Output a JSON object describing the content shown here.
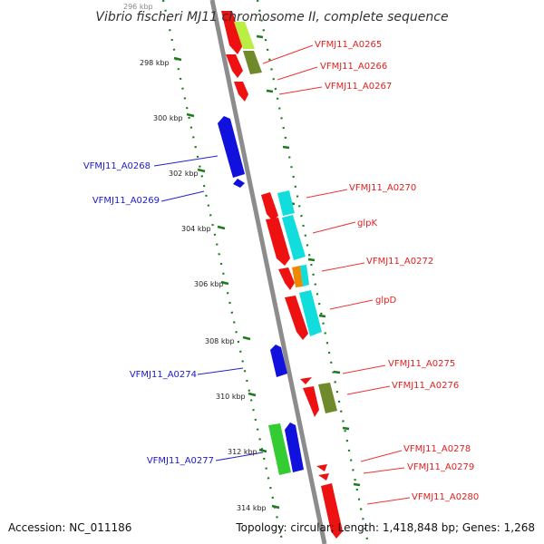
{
  "title": "Vibrio fischeri MJ11 chromosome II, complete sequence",
  "footer": {
    "accession": "Accession: NC_011186",
    "summary": "Topology: circular; Length: 1,418,848 bp; Genes: 1,268"
  },
  "scale": {
    "ticks": [
      "296 kbp",
      "298 kbp",
      "300 kbp",
      "302 kbp",
      "304 kbp",
      "306 kbp",
      "308 kbp",
      "310 kbp",
      "312 kbp",
      "314 kbp"
    ]
  },
  "colors": {
    "backbone": "#8c8c8c",
    "ruler": "#1e7a1e",
    "plus_label": "#e02020",
    "minus_label": "#1a1acc",
    "red": "#ee1111",
    "blue": "#1111dd",
    "cyan": "#11dddd",
    "olive": "#6f8a2a",
    "lime": "#bbee44",
    "orange": "#ee8800",
    "green": "#33cc33"
  },
  "labels": {
    "plus": [
      "VFMJ11_A0265",
      "VFMJ11_A0266",
      "VFMJ11_A0267",
      "VFMJ11_A0270",
      "glpK",
      "VFMJ11_A0272",
      "glpD",
      "VFMJ11_A0275",
      "VFMJ11_A0276",
      "VFMJ11_A0278",
      "VFMJ11_A0279",
      "VFMJ11_A0280"
    ],
    "minus": [
      "VFMJ11_A0268",
      "VFMJ11_A0269",
      "VFMJ11_A0274",
      "VFMJ11_A0277"
    ]
  }
}
